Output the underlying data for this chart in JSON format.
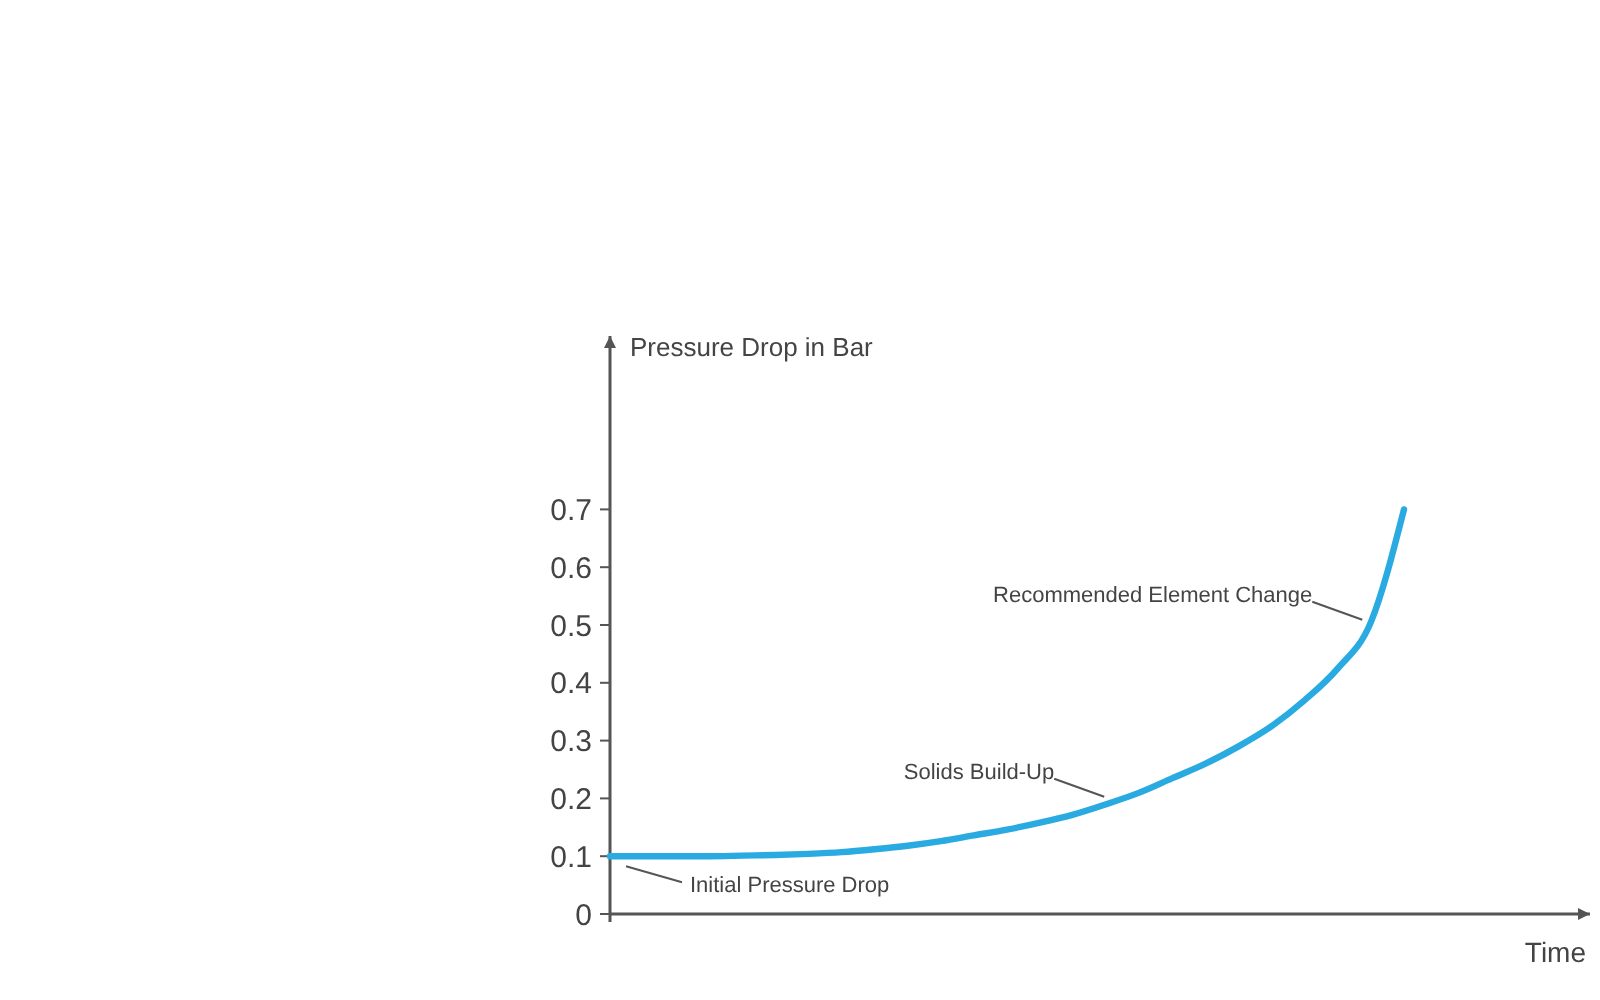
{
  "chart_data": {
    "type": "line",
    "xlabel": "Time",
    "ylabel": "Pressure Drop in Bar",
    "categories": [
      null,
      null,
      null,
      null,
      null,
      null,
      null,
      null,
      null,
      null,
      null,
      null,
      null,
      null,
      null,
      null,
      null,
      null,
      null,
      null,
      null,
      null,
      null,
      null,
      null
    ],
    "series": [
      {
        "color": "#29abe2",
        "values": [
          0.1,
          0.1,
          0.1,
          0.1,
          0.101,
          0.102,
          0.104,
          0.107,
          0.112,
          0.118,
          0.126,
          0.136,
          0.146,
          0.158,
          0.172,
          0.19,
          0.21,
          0.235,
          0.26,
          0.29,
          0.325,
          0.37,
          0.425,
          0.505,
          0.7
        ]
      }
    ],
    "ylim": [
      0,
      1
    ],
    "yticks": [
      0,
      0.1,
      0.2,
      0.3,
      0.4,
      0.5,
      0.6,
      0.7
    ],
    "annotations": [
      "Initial Pressure Drop",
      "Solids Build-Up",
      "Recommended Element Change"
    ],
    "grid": false,
    "marker": "none",
    "line_style": "solid"
  }
}
